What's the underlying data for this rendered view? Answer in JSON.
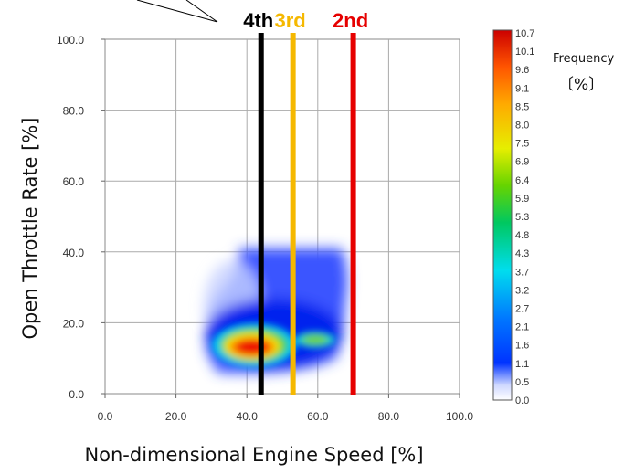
{
  "chart_data": {
    "type": "heatmap",
    "xlabel": "Non-dimensional Engine Speed [%]",
    "ylabel": "Open Throttle Rate [%]",
    "xlim": [
      0,
      100
    ],
    "ylim": [
      0,
      100
    ],
    "x_ticks": [
      "0.0",
      "20.0",
      "40.0",
      "60.0",
      "80.0",
      "100.0"
    ],
    "y_ticks": [
      "0.0",
      "20.0",
      "40.0",
      "60.0",
      "80.0",
      "100.0"
    ],
    "grid": true,
    "gear_lines": [
      {
        "label": "4th",
        "x": 44,
        "color": "#000000"
      },
      {
        "label": "3rd",
        "x": 53,
        "color": "#f5b800"
      },
      {
        "label": "2nd",
        "x": 70,
        "color": "#e60000"
      }
    ],
    "colorbar": {
      "title_line1": "Frequency",
      "title_line2": "〔%〕",
      "ticks": [
        "10.7",
        "10.1",
        "9.6",
        "9.1",
        "8.5",
        "8.0",
        "7.5",
        "6.9",
        "6.4",
        "5.9",
        "5.3",
        "4.8",
        "4.3",
        "3.7",
        "3.2",
        "2.7",
        "2.1",
        "1.6",
        "1.1",
        "0.5",
        "0.0"
      ]
    },
    "hotspots": [
      {
        "x": 41,
        "y": 12,
        "value": 10.7
      },
      {
        "x": 45,
        "y": 16,
        "value": 9.0
      },
      {
        "x": 59,
        "y": 15,
        "value": 5.0
      },
      {
        "x": 34,
        "y": 12,
        "value": 2.0
      }
    ]
  }
}
